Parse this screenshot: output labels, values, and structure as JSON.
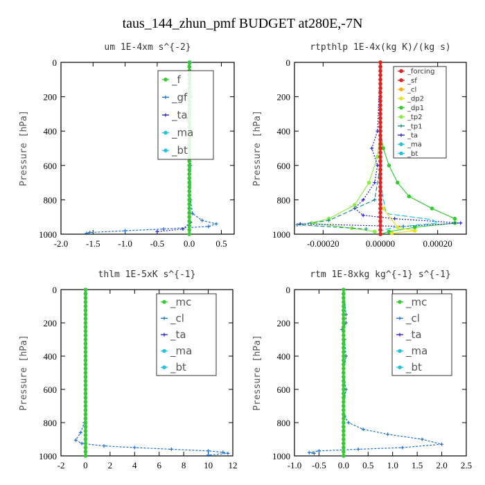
{
  "title": "taus_144_zhun_pmf  BUDGET at280E,-7N",
  "colors": {
    "green": "#33cc33",
    "blue": "#1a6fd6",
    "navy": "#2222cc",
    "cyan": "#22c3e0",
    "red": "#dd2222",
    "orange": "#ffaa00",
    "yellow": "#e8e020",
    "lightgreen": "#88ee44",
    "teal": "#1a8a8a"
  },
  "chart_data": [
    {
      "type": "line",
      "title": "um   1E-4xm  s^{-2}",
      "ylabel": "Pressure [hPa]",
      "xlim": [
        -2.0,
        0.7
      ],
      "ylim": [
        1000,
        0
      ],
      "xticks": [
        -2.0,
        -1.5,
        -1.0,
        -0.5,
        0.0,
        0.5
      ],
      "xticklabels": [
        "-2.0",
        "-1.5",
        "-1.0",
        "-0.5",
        "0.0",
        "0.5"
      ],
      "yticks": [
        0,
        200,
        400,
        600,
        800,
        1000
      ],
      "legend_style": "big",
      "legend": [
        "_f",
        "_gf",
        "_ta",
        "_ma",
        "_bt"
      ],
      "series": [
        {
          "name": "_gf",
          "color": "blue",
          "marker": "plus",
          "dash": "3,2",
          "points": [
            [
              0.02,
              0
            ],
            [
              0.03,
              200
            ],
            [
              0.02,
              400
            ],
            [
              0.02,
              600
            ],
            [
              0.02,
              800
            ],
            [
              0.05,
              880
            ],
            [
              0.2,
              920
            ],
            [
              0.42,
              940
            ],
            [
              0.3,
              955
            ],
            [
              -0.4,
              970
            ],
            [
              -1.0,
              980
            ],
            [
              -1.55,
              990
            ],
            [
              -1.6,
              995
            ]
          ]
        },
        {
          "name": "_ta",
          "color": "navy",
          "marker": "plus",
          "dash": "2,2",
          "points": [
            [
              0.0,
              0
            ],
            [
              0.0,
              500
            ],
            [
              0.0,
              880
            ],
            [
              0.02,
              930
            ],
            [
              -0.1,
              970
            ],
            [
              -0.5,
              985
            ]
          ]
        },
        {
          "name": "_f",
          "color": "green",
          "marker": "dot",
          "dash": "",
          "points": [
            [
              0.0,
              0
            ],
            [
              0.0,
              250
            ],
            [
              0.0,
              500
            ],
            [
              0.0,
              750
            ],
            [
              0.0,
              1000
            ]
          ]
        }
      ]
    },
    {
      "type": "line",
      "title": "rtpthlp   1E-4x(kg K)/(kg s)",
      "ylabel": "Pressure [hPa]",
      "xlim": [
        -0.0003,
        0.0003
      ],
      "ylim": [
        1000,
        0
      ],
      "xticks": [
        -0.0002,
        0.0,
        0.0002
      ],
      "xticklabels": [
        "-0.00020",
        "0.00000",
        "0.00020"
      ],
      "yticks": [
        0,
        200,
        400,
        600,
        800,
        1000
      ],
      "legend_style": "small",
      "legend": [
        "_forcing",
        "_sf",
        "_cl",
        "_dp2",
        "_dp1",
        "_tp2",
        "_tp1",
        "_ta",
        "_ma",
        "_bt"
      ],
      "series": [
        {
          "name": "_dp1",
          "color": "green",
          "marker": "dot",
          "dash": "",
          "points": [
            [
              0.0,
              0
            ],
            [
              0.0,
              400
            ],
            [
              1e-05,
              500
            ],
            [
              3e-05,
              600
            ],
            [
              6e-05,
              700
            ],
            [
              0.0001,
              780
            ],
            [
              0.00018,
              850
            ],
            [
              0.00026,
              910
            ],
            [
              0.00026,
              935
            ],
            [
              0.00012,
              960
            ],
            [
              3e-05,
              985
            ],
            [
              0.0,
              1000
            ]
          ]
        },
        {
          "name": "_tp2",
          "color": "lightgreen",
          "marker": "dot",
          "dash": "",
          "points": [
            [
              0.0,
              0
            ],
            [
              0.0,
              400
            ],
            [
              -1e-05,
              550
            ],
            [
              -4e-05,
              700
            ],
            [
              -9e-05,
              830
            ],
            [
              -0.00018,
              910
            ],
            [
              -0.00024,
              935
            ],
            [
              -0.0001,
              965
            ],
            [
              -2e-05,
              985
            ]
          ]
        },
        {
          "name": "_ta",
          "color": "navy",
          "marker": "plus",
          "dash": "2,2",
          "points": [
            [
              0.0,
              0
            ],
            [
              -1e-05,
              400
            ],
            [
              -3e-05,
              500
            ],
            [
              -1e-05,
              600
            ],
            [
              -2e-05,
              700
            ],
            [
              -6e-05,
              800
            ],
            [
              -9e-05,
              850
            ],
            [
              -6e-05,
              890
            ],
            [
              5e-05,
              910
            ],
            [
              0.00028,
              935
            ],
            [
              8e-05,
              955
            ],
            [
              -0.00028,
              940
            ]
          ]
        },
        {
          "name": "_tp1",
          "color": "teal",
          "marker": "plus",
          "dash": "6,3",
          "points": [
            [
              0.0,
              0
            ],
            [
              0.0,
              600
            ],
            [
              -2e-05,
              800
            ],
            [
              -0.00018,
              920
            ],
            [
              -0.00029,
              945
            ],
            [
              -5e-05,
              970
            ]
          ]
        },
        {
          "name": "_ma",
          "color": "cyan",
          "marker": "none",
          "dash": "8,3",
          "points": [
            [
              0.0,
              0
            ],
            [
              0.0,
              700
            ],
            [
              2e-05,
              880
            ],
            [
              0.00018,
              915
            ],
            [
              0.0002,
              935
            ],
            [
              5e-05,
              960
            ],
            [
              0.0,
              980
            ]
          ]
        },
        {
          "name": "_dp2",
          "color": "yellow",
          "marker": "dot",
          "dash": "",
          "points": [
            [
              1e-05,
              850
            ],
            [
              6e-05,
              960
            ],
            [
              0.00012,
              980
            ],
            [
              4e-05,
              995
            ]
          ]
        },
        {
          "name": "_forcing",
          "color": "red",
          "marker": "dot",
          "dash": "",
          "points": [
            [
              0.0,
              0
            ],
            [
              0.0,
              500
            ],
            [
              0.0,
              1000
            ]
          ]
        }
      ]
    },
    {
      "type": "line",
      "title": "thlm   1E-5xK  s^{-1}",
      "ylabel": "Pressure [hPa]",
      "xlim": [
        -2,
        12
      ],
      "ylim": [
        1000,
        0
      ],
      "xticks": [
        -2,
        0,
        2,
        4,
        6,
        8,
        10,
        12
      ],
      "xticklabels": [
        "-2",
        "0",
        "2",
        "4",
        "6",
        "8",
        "10",
        "12"
      ],
      "yticks": [
        0,
        200,
        400,
        600,
        800,
        1000
      ],
      "legend_style": "big",
      "legend": [
        "_mc",
        "_cl",
        "_ta",
        "_ma",
        "_bt"
      ],
      "series": [
        {
          "name": "_cl",
          "color": "blue",
          "marker": "plus",
          "dash": "3,2",
          "points": [
            [
              0.0,
              0
            ],
            [
              0.0,
              400
            ],
            [
              0.0,
              700
            ],
            [
              -0.1,
              800
            ],
            [
              -0.4,
              860
            ],
            [
              -0.8,
              905
            ],
            [
              -0.3,
              925
            ],
            [
              1.5,
              940
            ],
            [
              4,
              950
            ],
            [
              7,
              960
            ],
            [
              10,
              970
            ],
            [
              11.2,
              978
            ],
            [
              11.6,
              985
            ],
            [
              10,
              995
            ]
          ]
        },
        {
          "name": "_mc",
          "color": "green",
          "marker": "dot",
          "dash": "",
          "points": [
            [
              0.0,
              0
            ],
            [
              0.0,
              250
            ],
            [
              0.0,
              500
            ],
            [
              0.0,
              750
            ],
            [
              0.0,
              1000
            ]
          ]
        }
      ]
    },
    {
      "type": "line",
      "title": "rtm   1E-8xkg  kg^{-1}  s^{-1}",
      "ylabel": "Pressure [hPa]",
      "xlim": [
        -1.0,
        2.5
      ],
      "ylim": [
        1000,
        0
      ],
      "xticks": [
        -1.0,
        -0.5,
        0.0,
        0.5,
        1.0,
        1.5,
        2.0,
        2.5
      ],
      "xticklabels": [
        "-1.0",
        "-0.5",
        "0.0",
        "0.5",
        "1.0",
        "1.5",
        "2.0",
        "2.5"
      ],
      "yticks": [
        0,
        200,
        400,
        600,
        800,
        1000
      ],
      "legend_style": "big",
      "legend": [
        "_mc",
        "_cl",
        "_ta",
        "_ma",
        "_bt"
      ],
      "series": [
        {
          "name": "_cl",
          "color": "blue",
          "marker": "plus",
          "dash": "3,2",
          "points": [
            [
              0.0,
              0
            ],
            [
              0.05,
              150
            ],
            [
              0.05,
              200
            ],
            [
              -0.03,
              240
            ],
            [
              0.02,
              300
            ],
            [
              0.05,
              400
            ],
            [
              0.0,
              500
            ],
            [
              0.05,
              600
            ],
            [
              0.0,
              700
            ],
            [
              0.02,
              760
            ],
            [
              0.1,
              800
            ],
            [
              0.4,
              840
            ],
            [
              0.9,
              870
            ],
            [
              1.6,
              900
            ],
            [
              2.0,
              930
            ],
            [
              1.2,
              950
            ],
            [
              0.3,
              960
            ],
            [
              -0.5,
              970
            ],
            [
              -0.7,
              980
            ],
            [
              -0.6,
              985
            ]
          ]
        },
        {
          "name": "_mc",
          "color": "green",
          "marker": "dot",
          "dash": "",
          "points": [
            [
              0.0,
              0
            ],
            [
              0.0,
              250
            ],
            [
              0.0,
              500
            ],
            [
              0.0,
              750
            ],
            [
              0.0,
              1000
            ]
          ]
        }
      ]
    }
  ]
}
